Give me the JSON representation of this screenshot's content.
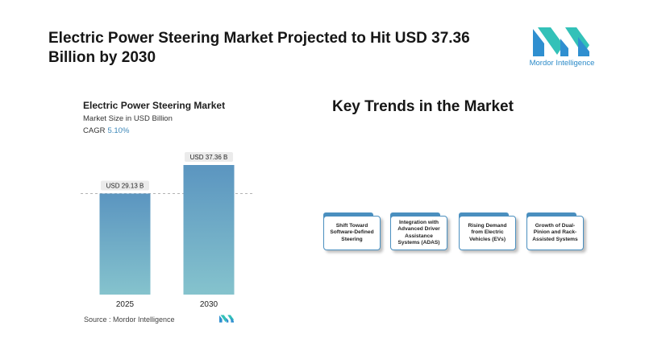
{
  "headline": "Electric Power Steering Market Projected to Hit USD 37.36 Billion by 2030",
  "logo": {
    "name": "Mordor Intelligence",
    "icon": "mordor-intelligence-logo",
    "colors": [
      "#2f8fd0",
      "#33c1b8"
    ]
  },
  "chart": {
    "title": "Electric Power Steering Market",
    "subtitle": "Market Size in USD Billion",
    "cagr_label": "CAGR",
    "cagr_value": "5.10%"
  },
  "chart_data": {
    "type": "bar",
    "title": "Electric Power Steering Market",
    "ylabel": "Market Size in USD Billion",
    "categories": [
      "2025",
      "2030"
    ],
    "values": [
      29.13,
      37.36
    ],
    "data_labels": [
      "USD 29.13 B",
      "USD 37.36 B"
    ],
    "ylim": [
      0,
      37.36
    ],
    "grid": false,
    "reference_line": 29.13,
    "bar_gradient": [
      "#5b95c0",
      "#85c3cd"
    ]
  },
  "source": "Source :  Mordor Intelligence",
  "trends_title": "Key Trends in the Market",
  "trends": [
    {
      "label": "Shift Toward Software-Defined Steering"
    },
    {
      "label": "Integration with Advanced Driver Assistance Systems (ADAS)"
    },
    {
      "label": "Rising Demand from Electric Vehicles (EVs)"
    },
    {
      "label": "Growth of Dual-Pinion and Rack-Assisted Systems"
    }
  ]
}
